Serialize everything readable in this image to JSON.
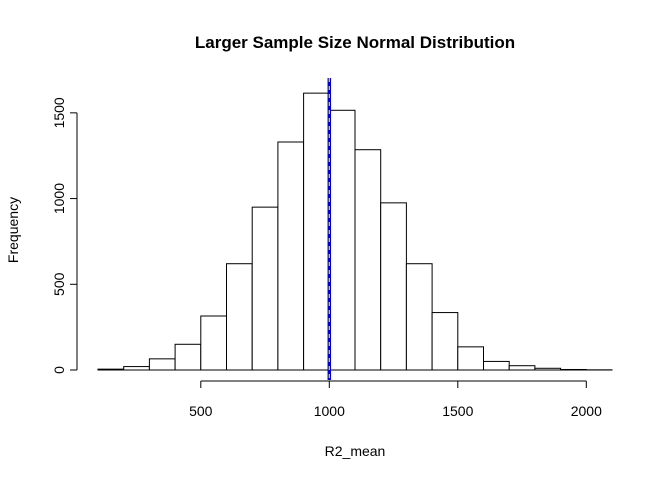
{
  "chart_data": {
    "type": "histogram",
    "title": "Larger Sample Size Normal Distribution",
    "xlabel": "R2_mean",
    "ylabel": "Frequency",
    "bins": [
      {
        "start": 100,
        "end": 200,
        "count": 5
      },
      {
        "start": 200,
        "end": 300,
        "count": 20
      },
      {
        "start": 300,
        "end": 400,
        "count": 65
      },
      {
        "start": 400,
        "end": 500,
        "count": 150
      },
      {
        "start": 500,
        "end": 600,
        "count": 315
      },
      {
        "start": 600,
        "end": 700,
        "count": 620
      },
      {
        "start": 700,
        "end": 800,
        "count": 950
      },
      {
        "start": 800,
        "end": 900,
        "count": 1330
      },
      {
        "start": 900,
        "end": 1000,
        "count": 1615
      },
      {
        "start": 1000,
        "end": 1100,
        "count": 1515
      },
      {
        "start": 1100,
        "end": 1200,
        "count": 1285
      },
      {
        "start": 1200,
        "end": 1300,
        "count": 975
      },
      {
        "start": 1300,
        "end": 1400,
        "count": 620
      },
      {
        "start": 1400,
        "end": 1500,
        "count": 335
      },
      {
        "start": 1500,
        "end": 1600,
        "count": 135
      },
      {
        "start": 1600,
        "end": 1700,
        "count": 50
      },
      {
        "start": 1700,
        "end": 1800,
        "count": 25
      },
      {
        "start": 1800,
        "end": 1900,
        "count": 10
      },
      {
        "start": 1900,
        "end": 2000,
        "count": 3
      },
      {
        "start": 2000,
        "end": 2100,
        "count": 1
      }
    ],
    "xlim": [
      100,
      2100
    ],
    "ylim": [
      0,
      1680
    ],
    "xticks": [
      {
        "value": 500,
        "label": "500"
      },
      {
        "value": 1000,
        "label": "1000"
      },
      {
        "value": 1500,
        "label": "1500"
      },
      {
        "value": 2000,
        "label": "2000"
      }
    ],
    "yticks": [
      {
        "value": 0,
        "label": "0"
      },
      {
        "value": 500,
        "label": "500"
      },
      {
        "value": 1000,
        "label": "1000"
      },
      {
        "value": 1500,
        "label": "1500"
      }
    ],
    "vlines": [
      {
        "value": 1000,
        "color": "#0000cd",
        "dashed_overlay_color": "#ffd700"
      }
    ],
    "bar_fill": "#ffffff",
    "bar_stroke": "#000000"
  }
}
